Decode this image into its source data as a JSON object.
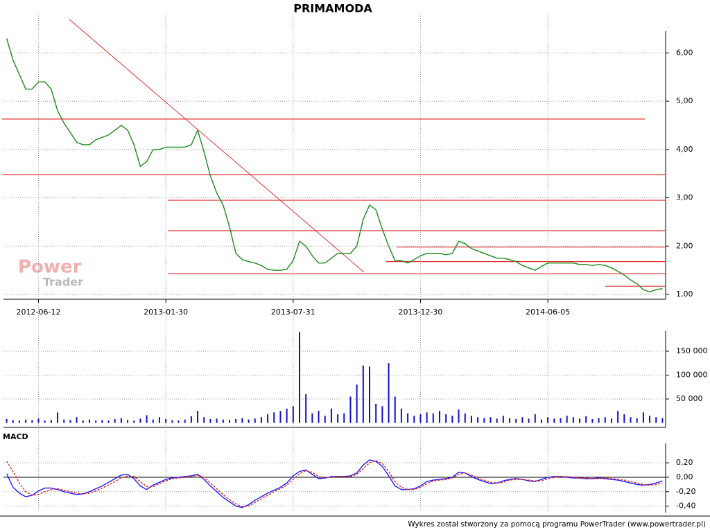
{
  "chart_data": [
    {
      "type": "line",
      "title": "PRIMAMODA",
      "categories": [
        null,
        null,
        null,
        null,
        null,
        "2012-06-12",
        null,
        null,
        null,
        null,
        null,
        null,
        null,
        null,
        null,
        null,
        null,
        null,
        null,
        null,
        null,
        null,
        null,
        null,
        null,
        "2013-01-30",
        null,
        null,
        null,
        null,
        null,
        null,
        null,
        null,
        null,
        null,
        null,
        null,
        null,
        null,
        null,
        null,
        null,
        null,
        null,
        "2013-07-31",
        null,
        null,
        null,
        null,
        null,
        null,
        null,
        null,
        null,
        null,
        null,
        null,
        null,
        null,
        null,
        null,
        null,
        null,
        null,
        "2013-12-30",
        null,
        null,
        null,
        null,
        null,
        null,
        null,
        null,
        null,
        null,
        null,
        null,
        null,
        null,
        null,
        null,
        null,
        null,
        null,
        "2014-06-05",
        null,
        null,
        null,
        null,
        null,
        null,
        null,
        null,
        null,
        null,
        null,
        null,
        null,
        null,
        null,
        null,
        null,
        null
      ],
      "series": [
        {
          "color": "#1a8a1a",
          "values": [
            6.3,
            5.85,
            5.55,
            5.25,
            5.25,
            5.4,
            5.4,
            5.25,
            4.8,
            4.55,
            4.35,
            4.15,
            4.1,
            4.1,
            4.2,
            4.25,
            4.3,
            4.4,
            4.5,
            4.4,
            4.1,
            3.65,
            3.75,
            4.0,
            4.0,
            4.05,
            4.05,
            4.05,
            4.05,
            4.1,
            4.4,
            3.95,
            3.45,
            3.1,
            2.85,
            2.4,
            1.85,
            1.72,
            1.68,
            1.65,
            1.6,
            1.52,
            1.5,
            1.5,
            1.52,
            1.7,
            2.1,
            2.0,
            1.8,
            1.65,
            1.65,
            1.75,
            1.85,
            1.85,
            1.85,
            2.0,
            2.55,
            2.85,
            2.75,
            2.35,
            2.0,
            1.7,
            1.7,
            1.65,
            1.72,
            1.8,
            1.85,
            1.85,
            1.85,
            1.82,
            1.85,
            2.1,
            2.05,
            1.95,
            1.9,
            1.85,
            1.8,
            1.75,
            1.75,
            1.72,
            1.68,
            1.6,
            1.55,
            1.5,
            1.58,
            1.65,
            1.65,
            1.65,
            1.65,
            1.65,
            1.62,
            1.62,
            1.6,
            1.62,
            1.6,
            1.55,
            1.48,
            1.4,
            1.3,
            1.22,
            1.1,
            1.05,
            1.1,
            1.12
          ]
        }
      ],
      "hlines": [
        4.63,
        3.48,
        2.95,
        2.32,
        1.98,
        1.68,
        1.43,
        1.17
      ],
      "hline_color": "#e03030",
      "ylim": [
        0.9,
        6.45
      ],
      "yticks": [
        {
          "value": 1,
          "label": "1,00"
        },
        {
          "value": 2,
          "label": "2,00"
        },
        {
          "value": 3,
          "label": "3,00"
        },
        {
          "value": 4,
          "label": "4,00"
        },
        {
          "value": 5,
          "label": "5,00"
        },
        {
          "value": 6,
          "label": "6,00"
        }
      ],
      "grid": true
    },
    {
      "type": "bar",
      "color": "#1010c0",
      "values": [
        8000,
        6000,
        5000,
        7000,
        6000,
        9000,
        5000,
        6000,
        22000,
        7000,
        6000,
        12000,
        5000,
        7000,
        5000,
        6000,
        5000,
        8000,
        10000,
        6000,
        5000,
        9000,
        16000,
        7000,
        12000,
        8000,
        6000,
        5000,
        7000,
        14000,
        25000,
        12000,
        8000,
        9000,
        7000,
        6000,
        8000,
        10000,
        7000,
        9000,
        12000,
        18000,
        22000,
        25000,
        30000,
        35000,
        190000,
        60000,
        20000,
        25000,
        15000,
        30000,
        18000,
        20000,
        55000,
        80000,
        120000,
        118000,
        40000,
        35000,
        125000,
        55000,
        30000,
        20000,
        15000,
        18000,
        22000,
        20000,
        25000,
        18000,
        15000,
        28000,
        20000,
        15000,
        12000,
        10000,
        12000,
        9000,
        15000,
        10000,
        8000,
        12000,
        9000,
        18000,
        7000,
        12000,
        9000,
        10000,
        15000,
        12000,
        9000,
        14000,
        8000,
        10000,
        12000,
        9000,
        25000,
        18000,
        12000,
        10000,
        22000,
        15000,
        12000,
        10000
      ],
      "ylim": [
        0,
        192000
      ],
      "yticks": [
        {
          "value": 50000,
          "label": "50 000"
        },
        {
          "value": 100000,
          "label": "100 000"
        },
        {
          "value": 150000,
          "label": "150 000"
        }
      ],
      "grid": true
    },
    {
      "type": "line",
      "title": "MACD",
      "series": [
        {
          "color": "#1a1aff",
          "values": [
            0.05,
            -0.14,
            -0.22,
            -0.27,
            -0.25,
            -0.19,
            -0.15,
            -0.15,
            -0.17,
            -0.2,
            -0.22,
            -0.24,
            -0.23,
            -0.2,
            -0.16,
            -0.12,
            -0.07,
            -0.02,
            0.03,
            0.04,
            -0.02,
            -0.12,
            -0.17,
            -0.11,
            -0.07,
            -0.03,
            -0.01,
            0.0,
            0.01,
            0.02,
            0.04,
            -0.03,
            -0.12,
            -0.2,
            -0.28,
            -0.34,
            -0.4,
            -0.42,
            -0.38,
            -0.32,
            -0.27,
            -0.22,
            -0.18,
            -0.14,
            -0.08,
            0.02,
            0.08,
            0.1,
            0.04,
            -0.02,
            -0.01,
            0.01,
            0.01,
            0.01,
            0.02,
            0.06,
            0.17,
            0.24,
            0.22,
            0.15,
            0.02,
            -0.12,
            -0.17,
            -0.17,
            -0.16,
            -0.12,
            -0.06,
            -0.04,
            -0.03,
            -0.02,
            0.0,
            0.07,
            0.06,
            0.01,
            -0.03,
            -0.06,
            -0.09,
            -0.08,
            -0.05,
            -0.03,
            -0.02,
            -0.03,
            -0.05,
            -0.06,
            -0.03,
            0.0,
            0.01,
            0.01,
            0.0,
            -0.01,
            -0.01,
            -0.02,
            -0.02,
            -0.01,
            -0.02,
            -0.03,
            -0.04,
            -0.06,
            -0.08,
            -0.1,
            -0.11,
            -0.1,
            -0.08,
            -0.05
          ]
        },
        {
          "color": "#e02020",
          "dashed": true,
          "values": [
            0.22,
            0.08,
            -0.08,
            -0.2,
            -0.25,
            -0.24,
            -0.2,
            -0.17,
            -0.16,
            -0.18,
            -0.2,
            -0.22,
            -0.23,
            -0.22,
            -0.19,
            -0.15,
            -0.11,
            -0.06,
            -0.01,
            0.02,
            0.01,
            -0.06,
            -0.13,
            -0.13,
            -0.09,
            -0.05,
            -0.02,
            -0.01,
            0.0,
            0.01,
            0.03,
            0.0,
            -0.08,
            -0.16,
            -0.24,
            -0.31,
            -0.37,
            -0.41,
            -0.4,
            -0.35,
            -0.3,
            -0.25,
            -0.2,
            -0.16,
            -0.11,
            -0.03,
            0.05,
            0.09,
            0.07,
            0.01,
            -0.01,
            0.0,
            0.01,
            0.01,
            0.01,
            0.04,
            0.12,
            0.2,
            0.23,
            0.19,
            0.08,
            -0.06,
            -0.14,
            -0.17,
            -0.17,
            -0.14,
            -0.09,
            -0.05,
            -0.04,
            -0.03,
            -0.01,
            0.04,
            0.06,
            0.03,
            -0.01,
            -0.04,
            -0.07,
            -0.08,
            -0.07,
            -0.04,
            -0.03,
            -0.03,
            -0.04,
            -0.05,
            -0.05,
            -0.02,
            0.0,
            0.01,
            0.01,
            0.0,
            -0.01,
            -0.01,
            -0.02,
            -0.02,
            -0.01,
            -0.02,
            -0.03,
            -0.04,
            -0.06,
            -0.08,
            -0.1,
            -0.11,
            -0.1,
            -0.08
          ]
        }
      ],
      "ylim": [
        -0.49,
        0.47
      ],
      "yticks": [
        {
          "value": -0.4,
          "label": "-0,40"
        },
        {
          "value": -0.2,
          "label": "-0,20"
        },
        {
          "value": 0,
          "label": "0,00"
        },
        {
          "value": 0.2,
          "label": "0,20"
        }
      ],
      "grid": true
    }
  ],
  "logo": [
    "Power",
    "Trader"
  ],
  "footer": "Wykres został stworzony za pomocą programu PowerTrader (www.powertrader.pl)"
}
